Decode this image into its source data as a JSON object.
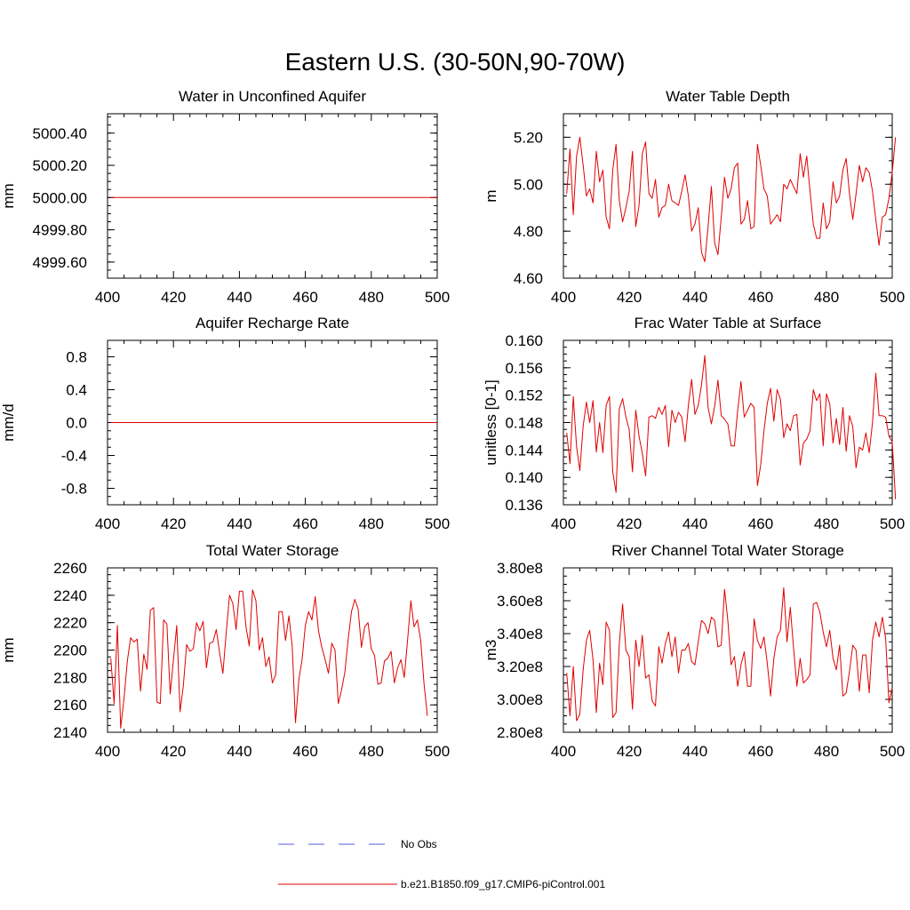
{
  "figure_title": "Eastern U.S. (30-50N,90-70W)",
  "colors": {
    "model": "#e00000",
    "obs": "#5a5adc",
    "axes": "#000000"
  },
  "legend": [
    {
      "label": "No Obs",
      "style": "dashed",
      "color": "#5a5adc"
    },
    {
      "label": "b.e21.B1850.f09_g17.CMIP6-piControl.001",
      "style": "solid",
      "color": "#e00000"
    }
  ],
  "chart_data": [
    {
      "type": "line",
      "title": "Water in Unconfined Aquifer",
      "ylabel": "mm",
      "xlim": [
        400,
        500
      ],
      "ylim": [
        4999.5,
        5000.52
      ],
      "xticks": [
        400,
        420,
        440,
        460,
        480,
        500
      ],
      "yticks": [
        4999.6,
        4999.8,
        5000.0,
        5000.2,
        5000.4
      ],
      "ytick_labels": [
        "4999.60",
        "4999.80",
        "5000.00",
        "5000.20",
        "5000.40"
      ],
      "x_start": 401,
      "series": [
        {
          "values": [
            5000.0,
            5000.0,
            5000.0,
            5000.0,
            5000.0,
            5000.0,
            5000.0,
            5000.0,
            5000.0,
            5000.0,
            5000.0,
            5000.0,
            5000.0,
            5000.0,
            5000.0,
            5000.0,
            5000.0,
            5000.0,
            5000.0,
            5000.0,
            5000.0,
            5000.0,
            5000.0,
            5000.0,
            5000.0,
            5000.0,
            5000.0,
            5000.0,
            5000.0,
            5000.0,
            5000.0,
            5000.0,
            5000.0,
            5000.0,
            5000.0,
            5000.0,
            5000.0,
            5000.0,
            5000.0,
            5000.0,
            5000.0,
            5000.0,
            5000.0,
            5000.0,
            5000.0,
            5000.0,
            5000.0,
            5000.0,
            5000.0,
            5000.0,
            5000.0,
            5000.0,
            5000.0,
            5000.0,
            5000.0,
            5000.0,
            5000.0,
            5000.0,
            5000.0,
            5000.0,
            5000.0,
            5000.0,
            5000.0,
            5000.0,
            5000.0,
            5000.0,
            5000.0,
            5000.0,
            5000.0,
            5000.0,
            5000.0,
            5000.0,
            5000.0,
            5000.0,
            5000.0,
            5000.0,
            5000.0,
            5000.0,
            5000.0,
            5000.0,
            5000.0,
            5000.0,
            5000.0,
            5000.0,
            5000.0,
            5000.0,
            5000.0,
            5000.0,
            5000.0,
            5000.0,
            5000.0,
            5000.0,
            5000.0,
            5000.0,
            5000.0,
            5000.0,
            5000.0,
            5000.0,
            5000.0,
            5000.0
          ]
        }
      ]
    },
    {
      "type": "line",
      "title": "Water Table Depth",
      "ylabel": "m",
      "xlim": [
        400,
        500
      ],
      "ylim": [
        4.6,
        5.3
      ],
      "xticks": [
        400,
        420,
        440,
        460,
        480,
        500
      ],
      "yticks": [
        4.6,
        4.8,
        5.0,
        5.2
      ],
      "ytick_labels": [
        "4.60",
        "4.80",
        "5.00",
        "5.20"
      ],
      "x_start": 401,
      "series": [
        {
          "values": [
            4.96,
            5.15,
            4.87,
            5.12,
            5.2,
            5.08,
            4.95,
            4.98,
            4.92,
            5.14,
            5.01,
            5.06,
            4.86,
            4.81,
            5.06,
            5.17,
            4.93,
            4.84,
            4.9,
            4.97,
            5.14,
            4.82,
            4.91,
            5.13,
            5.18,
            4.96,
            4.94,
            5.02,
            4.86,
            4.9,
            4.91,
            5.0,
            4.93,
            4.92,
            4.91,
            4.97,
            5.04,
            4.95,
            4.8,
            4.83,
            4.9,
            4.71,
            4.67,
            4.82,
            4.99,
            4.75,
            4.7,
            4.86,
            5.03,
            4.94,
            4.98,
            5.07,
            5.09,
            4.83,
            4.85,
            4.93,
            4.81,
            4.82,
            5.17,
            5.08,
            4.98,
            4.95,
            4.83,
            4.85,
            4.87,
            4.84,
            5.0,
            4.98,
            5.02,
            4.99,
            4.96,
            5.13,
            5.03,
            5.12,
            4.97,
            4.83,
            4.77,
            4.77,
            4.92,
            4.81,
            4.84,
            5.01,
            4.92,
            4.95,
            5.06,
            5.11,
            4.96,
            4.85,
            4.96,
            5.08,
            5.01,
            5.07,
            5.05,
            4.97,
            4.85,
            4.74,
            4.86,
            4.87,
            4.94,
            5.05,
            5.2
          ]
        }
      ]
    },
    {
      "type": "line",
      "title": "Aquifer Recharge Rate",
      "ylabel": "mm/d",
      "xlim": [
        400,
        500
      ],
      "ylim": [
        -1.0,
        1.0
      ],
      "xticks": [
        400,
        420,
        440,
        460,
        480,
        500
      ],
      "yticks": [
        -0.8,
        -0.4,
        0.0,
        0.4,
        0.8
      ],
      "ytick_labels": [
        "-0.8",
        "-0.4",
        "0.0",
        "0.4",
        "0.8"
      ],
      "x_start": 401,
      "series": [
        {
          "values": [
            0.0,
            0.0,
            0.0,
            0.0,
            0.0,
            0.0,
            0.0,
            0.0,
            0.0,
            0.0,
            0.0,
            0.0,
            0.0,
            0.0,
            0.0,
            0.0,
            0.0,
            0.0,
            0.0,
            0.0,
            0.0,
            0.0,
            0.0,
            0.0,
            0.0,
            0.0,
            0.0,
            0.0,
            0.0,
            0.0,
            0.0,
            0.0,
            0.0,
            0.0,
            0.0,
            0.0,
            0.0,
            0.0,
            0.0,
            0.0,
            0.0,
            0.0,
            0.0,
            0.0,
            0.0,
            0.0,
            0.0,
            0.0,
            0.0,
            0.0,
            0.0,
            0.0,
            0.0,
            0.0,
            0.0,
            0.0,
            0.0,
            0.0,
            0.0,
            0.0,
            0.0,
            0.0,
            0.0,
            0.0,
            0.0,
            0.0,
            0.0,
            0.0,
            0.0,
            0.0,
            0.0,
            0.0,
            0.0,
            0.0,
            0.0,
            0.0,
            0.0,
            0.0,
            0.0,
            0.0,
            0.0,
            0.0,
            0.0,
            0.0,
            0.0,
            0.0,
            0.0,
            0.0,
            0.0,
            0.0,
            0.0,
            0.0,
            0.0,
            0.0,
            0.0,
            0.0,
            0.0,
            0.0,
            0.0,
            0.0
          ]
        }
      ]
    },
    {
      "type": "line",
      "title": "Frac Water Table at Surface",
      "ylabel": "unitless [0-1]",
      "xlim": [
        400,
        500
      ],
      "ylim": [
        0.136,
        0.16
      ],
      "xticks": [
        400,
        420,
        440,
        460,
        480,
        500
      ],
      "yticks": [
        0.136,
        0.14,
        0.144,
        0.148,
        0.152,
        0.156,
        0.16
      ],
      "ytick_labels": [
        "0.136",
        "0.140",
        "0.144",
        "0.148",
        "0.152",
        "0.156",
        "0.160"
      ],
      "x_start": 401,
      "series": [
        {
          "values": [
            0.1465,
            0.142,
            0.1518,
            0.1445,
            0.141,
            0.1475,
            0.151,
            0.148,
            0.1512,
            0.1437,
            0.148,
            0.1436,
            0.1505,
            0.1518,
            0.1408,
            0.1378,
            0.15,
            0.1515,
            0.1488,
            0.147,
            0.1408,
            0.1498,
            0.146,
            0.1435,
            0.1402,
            0.1488,
            0.149,
            0.1486,
            0.1502,
            0.1492,
            0.1505,
            0.1445,
            0.1498,
            0.148,
            0.1495,
            0.1488,
            0.1452,
            0.1505,
            0.1543,
            0.1492,
            0.1505,
            0.1535,
            0.1578,
            0.1502,
            0.1478,
            0.1504,
            0.1542,
            0.149,
            0.1485,
            0.1478,
            0.1446,
            0.1446,
            0.1498,
            0.154,
            0.1488,
            0.1498,
            0.1508,
            0.1502,
            0.1388,
            0.1418,
            0.1468,
            0.1508,
            0.153,
            0.1482,
            0.1528,
            0.1514,
            0.1458,
            0.1478,
            0.1468,
            0.149,
            0.1492,
            0.1418,
            0.145,
            0.1456,
            0.1468,
            0.1528,
            0.1512,
            0.1522,
            0.1446,
            0.1522,
            0.1507,
            0.145,
            0.1486,
            0.1448,
            0.1502,
            0.1438,
            0.149,
            0.1474,
            0.1414,
            0.1444,
            0.144,
            0.1465,
            0.1436,
            0.148,
            0.1552,
            0.149,
            0.149,
            0.1488,
            0.146,
            0.1452,
            0.1368
          ]
        }
      ]
    },
    {
      "type": "line",
      "title": "Total Water Storage",
      "ylabel": "mm",
      "xlim": [
        400,
        500
      ],
      "ylim": [
        2140,
        2260
      ],
      "xticks": [
        400,
        420,
        440,
        460,
        480,
        500
      ],
      "yticks": [
        2140,
        2160,
        2180,
        2200,
        2220,
        2240,
        2260
      ],
      "ytick_labels": [
        "2140",
        "2160",
        "2180",
        "2200",
        "2220",
        "2240",
        "2260"
      ],
      "x_start": 401,
      "series": [
        {
          "values": [
            2194,
            2161,
            2218,
            2143,
            2165,
            2192,
            2209,
            2206,
            2208,
            2170,
            2197,
            2186,
            2229,
            2231,
            2162,
            2161,
            2222,
            2219,
            2168,
            2193,
            2218,
            2155,
            2174,
            2204,
            2199,
            2201,
            2220,
            2214,
            2221,
            2187,
            2205,
            2206,
            2215,
            2198,
            2183,
            2213,
            2240,
            2234,
            2215,
            2243,
            2243,
            2217,
            2203,
            2244,
            2236,
            2200,
            2209,
            2188,
            2195,
            2176,
            2182,
            2228,
            2228,
            2207,
            2225,
            2203,
            2147,
            2178,
            2193,
            2218,
            2228,
            2222,
            2239,
            2214,
            2202,
            2193,
            2183,
            2205,
            2200,
            2161,
            2171,
            2184,
            2208,
            2228,
            2237,
            2230,
            2202,
            2217,
            2220,
            2201,
            2196,
            2175,
            2176,
            2192,
            2194,
            2199,
            2176,
            2187,
            2193,
            2180,
            2207,
            2236,
            2217,
            2222,
            2207,
            2175,
            2152
          ]
        }
      ]
    },
    {
      "type": "line",
      "title": "River Channel Total Water Storage",
      "ylabel": "m3",
      "xlim": [
        400,
        500
      ],
      "ylim": [
        280000000,
        380000000
      ],
      "xticks": [
        400,
        420,
        440,
        460,
        480,
        500
      ],
      "yticks": [
        280000000,
        300000000,
        320000000,
        340000000,
        360000000,
        380000000
      ],
      "ytick_labels": [
        "2.80e8",
        "3.00e8",
        "3.20e8",
        "3.40e8",
        "3.60e8",
        "3.80e8"
      ],
      "x_start": 401,
      "series": [
        {
          "values": [
            316000000,
            290000000,
            320000000,
            287000000,
            291000000,
            318000000,
            336000000,
            342000000,
            324000000,
            292000000,
            322000000,
            309000000,
            347000000,
            342000000,
            289000000,
            292000000,
            334000000,
            358000000,
            330000000,
            326000000,
            294000000,
            336000000,
            320000000,
            339000000,
            313000000,
            315000000,
            299000000,
            296000000,
            332000000,
            322000000,
            334000000,
            341000000,
            326000000,
            338000000,
            316000000,
            330000000,
            330000000,
            334000000,
            323000000,
            321000000,
            335000000,
            348000000,
            346000000,
            340000000,
            350000000,
            348000000,
            332000000,
            333000000,
            367000000,
            348000000,
            321000000,
            326000000,
            308000000,
            321000000,
            329000000,
            308000000,
            308000000,
            349000000,
            336000000,
            331000000,
            338000000,
            322000000,
            302000000,
            325000000,
            338000000,
            342000000,
            368000000,
            335000000,
            356000000,
            331000000,
            308000000,
            325000000,
            310000000,
            312000000,
            315000000,
            358000000,
            359000000,
            353000000,
            341000000,
            332000000,
            342000000,
            325000000,
            318000000,
            333000000,
            302000000,
            304000000,
            317000000,
            333000000,
            330000000,
            305000000,
            327000000,
            327000000,
            304000000,
            336000000,
            347000000,
            338000000,
            350000000,
            337000000,
            298000000,
            307000000
          ]
        }
      ]
    }
  ]
}
